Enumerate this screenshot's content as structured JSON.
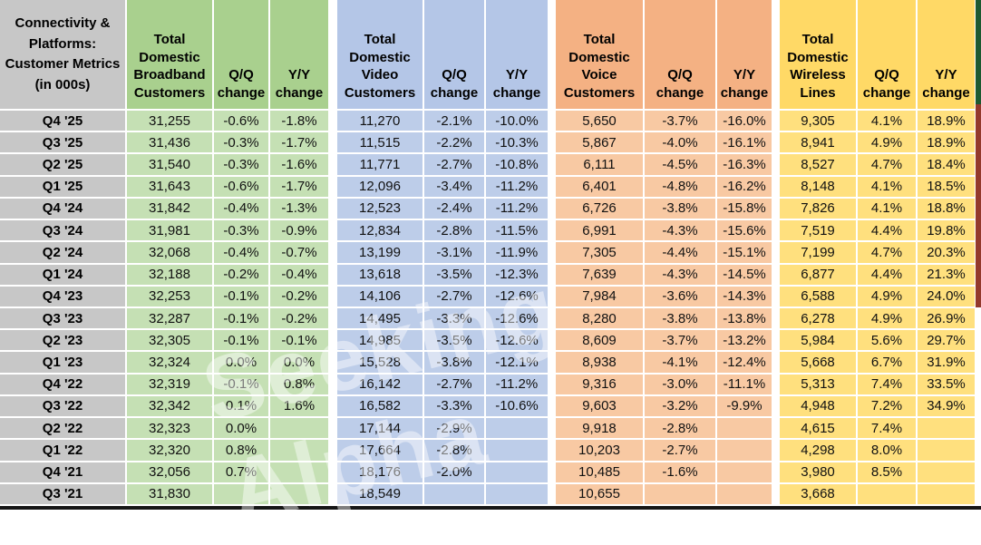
{
  "table": {
    "corner": "Connectivity & Platforms: Customer Metrics (in 000s)",
    "groups": [
      {
        "title": "Total Domestic Broadband Customers",
        "qq": "Q/Q change",
        "yy": "Y/Y change"
      },
      {
        "title": "Total Domestic Video Customers",
        "qq": "Q/Q change",
        "yy": "Y/Y change"
      },
      {
        "title": "Total Domestic Voice Customers",
        "qq": "Q/Q change",
        "yy": "Y/Y change"
      },
      {
        "title": "Total Domestic Wireless Lines",
        "qq": "Q/Q change",
        "yy": "Y/Y change"
      }
    ],
    "rows": [
      [
        "Q4 '25",
        "31,255",
        "-0.6%",
        "-1.8%",
        "11,270",
        "-2.1%",
        "-10.0%",
        "5,650",
        "-3.7%",
        "-16.0%",
        "9,305",
        "4.1%",
        "18.9%"
      ],
      [
        "Q3 '25",
        "31,436",
        "-0.3%",
        "-1.7%",
        "11,515",
        "-2.2%",
        "-10.3%",
        "5,867",
        "-4.0%",
        "-16.1%",
        "8,941",
        "4.9%",
        "18.9%"
      ],
      [
        "Q2 '25",
        "31,540",
        "-0.3%",
        "-1.6%",
        "11,771",
        "-2.7%",
        "-10.8%",
        "6,111",
        "-4.5%",
        "-16.3%",
        "8,527",
        "4.7%",
        "18.4%"
      ],
      [
        "Q1 '25",
        "31,643",
        "-0.6%",
        "-1.7%",
        "12,096",
        "-3.4%",
        "-11.2%",
        "6,401",
        "-4.8%",
        "-16.2%",
        "8,148",
        "4.1%",
        "18.5%"
      ],
      [
        "Q4 '24",
        "31,842",
        "-0.4%",
        "-1.3%",
        "12,523",
        "-2.4%",
        "-11.2%",
        "6,726",
        "-3.8%",
        "-15.8%",
        "7,826",
        "4.1%",
        "18.8%"
      ],
      [
        "Q3 '24",
        "31,981",
        "-0.3%",
        "-0.9%",
        "12,834",
        "-2.8%",
        "-11.5%",
        "6,991",
        "-4.3%",
        "-15.6%",
        "7,519",
        "4.4%",
        "19.8%"
      ],
      [
        "Q2 '24",
        "32,068",
        "-0.4%",
        "-0.7%",
        "13,199",
        "-3.1%",
        "-11.9%",
        "7,305",
        "-4.4%",
        "-15.1%",
        "7,199",
        "4.7%",
        "20.3%"
      ],
      [
        "Q1 '24",
        "32,188",
        "-0.2%",
        "-0.4%",
        "13,618",
        "-3.5%",
        "-12.3%",
        "7,639",
        "-4.3%",
        "-14.5%",
        "6,877",
        "4.4%",
        "21.3%"
      ],
      [
        "Q4 '23",
        "32,253",
        "-0.1%",
        "-0.2%",
        "14,106",
        "-2.7%",
        "-12.6%",
        "7,984",
        "-3.6%",
        "-14.3%",
        "6,588",
        "4.9%",
        "24.0%"
      ],
      [
        "Q3 '23",
        "32,287",
        "-0.1%",
        "-0.2%",
        "14,495",
        "-3.3%",
        "-12.6%",
        "8,280",
        "-3.8%",
        "-13.8%",
        "6,278",
        "4.9%",
        "26.9%"
      ],
      [
        "Q2 '23",
        "32,305",
        "-0.1%",
        "-0.1%",
        "14,985",
        "-3.5%",
        "-12.6%",
        "8,609",
        "-3.7%",
        "-13.2%",
        "5,984",
        "5.6%",
        "29.7%"
      ],
      [
        "Q1 '23",
        "32,324",
        "0.0%",
        "0.0%",
        "15,528",
        "-3.8%",
        "-12.1%",
        "8,938",
        "-4.1%",
        "-12.4%",
        "5,668",
        "6.7%",
        "31.9%"
      ],
      [
        "Q4 '22",
        "32,319",
        "-0.1%",
        "0.8%",
        "16,142",
        "-2.7%",
        "-11.2%",
        "9,316",
        "-3.0%",
        "-11.1%",
        "5,313",
        "7.4%",
        "33.5%"
      ],
      [
        "Q3 '22",
        "32,342",
        "0.1%",
        "1.6%",
        "16,582",
        "-3.3%",
        "-10.6%",
        "9,603",
        "-3.2%",
        "-9.9%",
        "4,948",
        "7.2%",
        "34.9%"
      ],
      [
        "Q2 '22",
        "32,323",
        "0.0%",
        "",
        "17,144",
        "-2.9%",
        "",
        "9,918",
        "-2.8%",
        "",
        "4,615",
        "7.4%",
        ""
      ],
      [
        "Q1 '22",
        "32,320",
        "0.8%",
        "",
        "17,664",
        "-2.8%",
        "",
        "10,203",
        "-2.7%",
        "",
        "4,298",
        "8.0%",
        ""
      ],
      [
        "Q4 '21",
        "32,056",
        "0.7%",
        "",
        "18,176",
        "-2.0%",
        "",
        "10,485",
        "-1.6%",
        "",
        "3,980",
        "8.5%",
        ""
      ],
      [
        "Q3 '21",
        "31,830",
        "",
        "",
        "18,549",
        "",
        "",
        "10,655",
        "",
        "",
        "3,668",
        "",
        ""
      ]
    ]
  },
  "watermark": {
    "text": "Seeking Alpha"
  },
  "colors": {
    "label_bg": "#C7C7C7",
    "broadband_header": "#A9D08E",
    "broadband_body": "#C5E0B4",
    "video_header": "#B4C6E7",
    "video_body": "#BDCDE9",
    "voice_header": "#F4B183",
    "voice_body": "#F8C9A3",
    "wireless_header": "#FFD966",
    "wireless_body": "#FFE07E",
    "right_edge_top": "#1D5A31",
    "right_edge_mid": "#93392C",
    "bottom_edge": "#161616"
  }
}
